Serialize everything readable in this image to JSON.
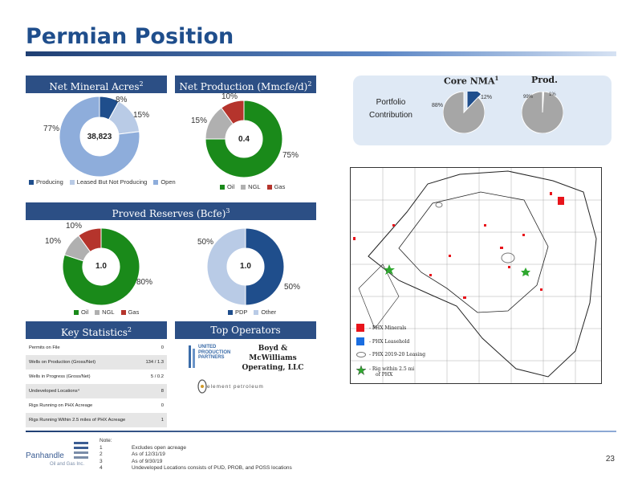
{
  "page": {
    "title": "Permian Position",
    "page_number": "23"
  },
  "sections": {
    "net_mineral": {
      "label": "Net Mineral Acres",
      "sup": "2"
    },
    "net_production": {
      "label": "Net Production (Mmcfe/d)",
      "sup": "2"
    },
    "proved_reserves": {
      "label": "Proved Reserves (Bcfe)",
      "sup": "3"
    },
    "key_statistics": {
      "label": "Key Statistics",
      "sup": "2"
    },
    "top_operators": {
      "label": "Top Operators"
    }
  },
  "chart_data": [
    {
      "type": "pie",
      "id": "net_mineral_acres",
      "center_label": "38,823",
      "slices": [
        {
          "name": "Producing",
          "value": 8,
          "label": "8%",
          "color": "#1f4e8c"
        },
        {
          "name": "Leased But Not Producing",
          "value": 15,
          "label": "15%",
          "color": "#b9cbe6"
        },
        {
          "name": "Open",
          "value": 77,
          "label": "77%",
          "color": "#8eaddb"
        }
      ]
    },
    {
      "type": "pie",
      "id": "net_production",
      "center_label": "0.4",
      "slices": [
        {
          "name": "Oil",
          "value": 75,
          "label": "75%",
          "color": "#1a8a1a"
        },
        {
          "name": "NGL",
          "value": 15,
          "label": "15%",
          "color": "#b0b0b0"
        },
        {
          "name": "Gas",
          "value": 10,
          "label": "10%",
          "color": "#b5342c"
        }
      ]
    },
    {
      "type": "pie",
      "id": "proved_reserves_commodity",
      "center_label": "1.0",
      "slices": [
        {
          "name": "Oil",
          "value": 80,
          "label": "80%",
          "color": "#1a8a1a"
        },
        {
          "name": "NGL",
          "value": 10,
          "label": "10%",
          "color": "#b0b0b0"
        },
        {
          "name": "Gas",
          "value": 10,
          "label": "10%",
          "color": "#b5342c"
        }
      ]
    },
    {
      "type": "pie",
      "id": "proved_reserves_category",
      "center_label": "1.0",
      "slices": [
        {
          "name": "PDP",
          "value": 50,
          "label": "50%",
          "color": "#1f4e8c"
        },
        {
          "name": "Other",
          "value": 50,
          "label": "50%",
          "color": "#b9cbe6"
        }
      ]
    },
    {
      "type": "pie",
      "id": "core_nma",
      "title": "Core NMA",
      "title_sup": "1",
      "slices": [
        {
          "name": "Core",
          "value": 12,
          "label": "12%",
          "color": "#1f4e8c"
        },
        {
          "name": "Rest",
          "value": 88,
          "label": "88%",
          "color": "#a6a6a6"
        }
      ]
    },
    {
      "type": "pie",
      "id": "prod",
      "title": "Prod.",
      "slices": [
        {
          "name": "Core",
          "value": 1,
          "label": "1%",
          "color": "#1f4e8c"
        },
        {
          "name": "Rest",
          "value": 99,
          "label": "99%",
          "color": "#a6a6a6"
        }
      ]
    }
  ],
  "portfolio": {
    "line1": "Portfolio",
    "line2": "Contribution"
  },
  "key_stats": [
    {
      "label": "Permits on File",
      "value": "0"
    },
    {
      "label": "Wells on Production (Gross/Net)",
      "value": "134 / 1.3"
    },
    {
      "label": "Wells in Progress (Gross/Net)",
      "value": "5 / 0.2"
    },
    {
      "label": "Undeveloped Locations⁴",
      "value": "8"
    },
    {
      "label": "Rigs Running on PHX Acreage",
      "value": "0"
    },
    {
      "label": "Rigs Running Within 2.5 miles of  PHX Acreage",
      "value": "1"
    }
  ],
  "operators": {
    "boyd_line1": "Boyd & McWilliams",
    "boyd_line2": "Operating, LLC",
    "upp_line1": "UNITED",
    "upp_line2": "PRODUCTION",
    "upp_line3": "PARTNERS",
    "element": "element petroleum"
  },
  "map_legend": [
    {
      "label": "- PHX Minerals",
      "color": "#e8141b"
    },
    {
      "label": "- PHX Leasehold",
      "color": "#1a6de0"
    },
    {
      "label": "- PHX 2019-20 Leasing",
      "color": "#777777"
    },
    {
      "label": "- Rig within 2.5 mi",
      "label2": "of PHX",
      "color": "#2fa82f"
    }
  ],
  "notes": {
    "heading": "Note:",
    "items": [
      {
        "num": "1",
        "text": "Excludes open acreage"
      },
      {
        "num": "2",
        "text": "As of  12/31/19"
      },
      {
        "num": "3",
        "text": "As of 9/30/19"
      },
      {
        "num": "4",
        "text": "Undeveloped Locations consists of PUD, PROB, and POSS locations"
      }
    ]
  },
  "company": {
    "name": "Panhandle",
    "sub": "Oil and Gas Inc."
  }
}
